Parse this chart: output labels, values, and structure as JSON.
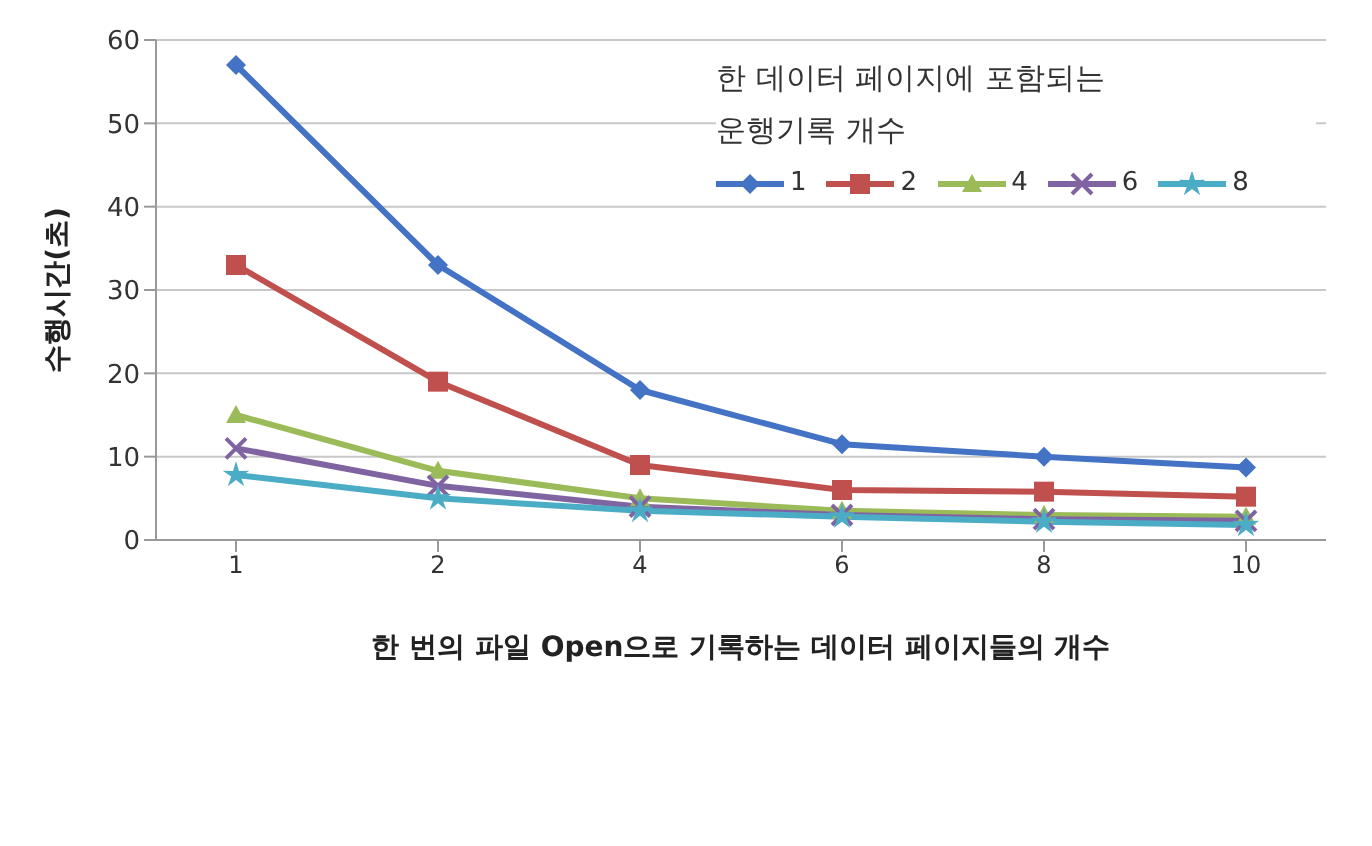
{
  "chart_data": {
    "type": "line",
    "xlabel": "한 번의 파일 Open으로 기록하는 데이터 페이지들의 개수",
    "ylabel": "수행시간(초)",
    "legend_title": "한 데이터 페이지에 포함되는 운행기록 개수",
    "categories": [
      "1",
      "2",
      "4",
      "6",
      "8",
      "10"
    ],
    "ylim": [
      0,
      60
    ],
    "yticks": [
      0,
      10,
      20,
      30,
      40,
      50,
      60
    ],
    "grid": "y",
    "legend": "top right",
    "series": [
      {
        "name": "1",
        "color": "#4472c4",
        "marker": "diamond",
        "values": [
          57,
          33,
          18,
          11.5,
          10,
          8.7
        ]
      },
      {
        "name": "2",
        "color": "#c0504d",
        "marker": "square",
        "values": [
          33,
          19,
          9,
          6,
          5.8,
          5.2
        ]
      },
      {
        "name": "4",
        "color": "#9bbb59",
        "marker": "triangle",
        "values": [
          15,
          8.3,
          5,
          3.5,
          3,
          2.8
        ]
      },
      {
        "name": "6",
        "color": "#8064a2",
        "marker": "cross",
        "values": [
          11,
          6.5,
          4,
          3,
          2.5,
          2.3
        ]
      },
      {
        "name": "8",
        "color": "#4bacc6",
        "marker": "star",
        "values": [
          7.8,
          5,
          3.5,
          2.8,
          2.2,
          1.8
        ]
      }
    ]
  }
}
